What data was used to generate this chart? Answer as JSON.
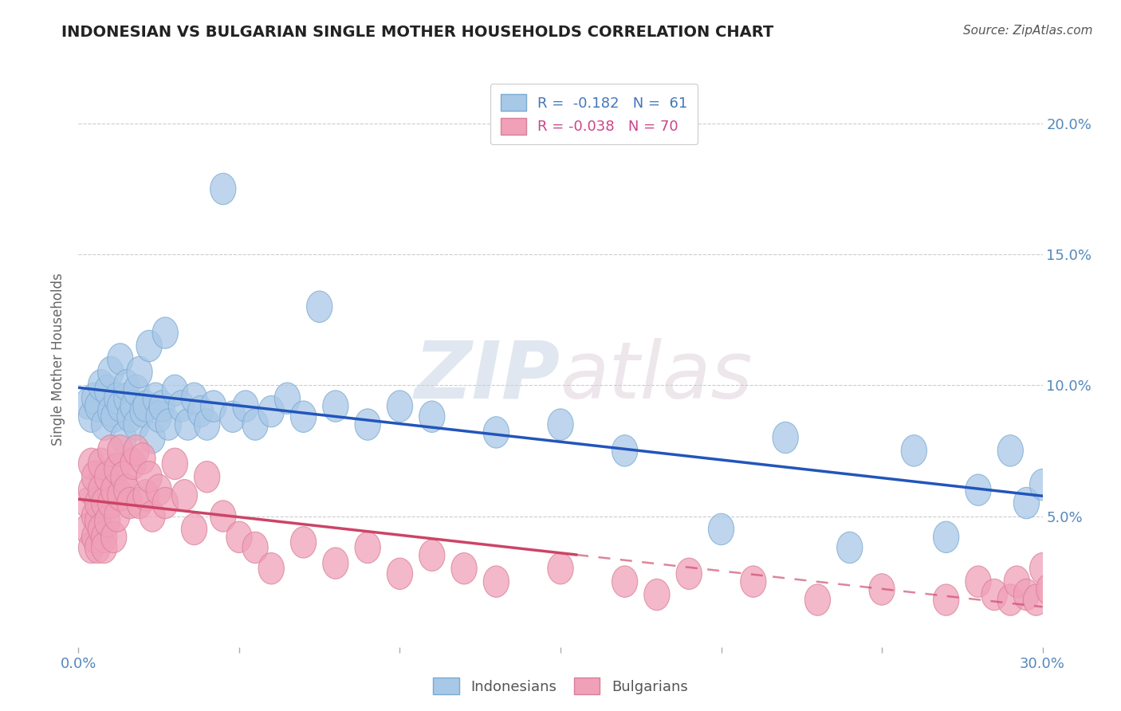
{
  "title": "INDONESIAN VS BULGARIAN SINGLE MOTHER HOUSEHOLDS CORRELATION CHART",
  "source": "Source: ZipAtlas.com",
  "ylabel": "Single Mother Households",
  "R1": -0.182,
  "N1": 61,
  "R2": -0.038,
  "N2": 70,
  "legend_label1": "Indonesians",
  "legend_label2": "Bulgarians",
  "xlim": [
    0.0,
    0.3
  ],
  "ylim": [
    0.0,
    0.22
  ],
  "xticks": [
    0.0,
    0.05,
    0.1,
    0.15,
    0.2,
    0.25,
    0.3
  ],
  "xticklabels": [
    "0.0%",
    "",
    "",
    "",
    "",
    "",
    "30.0%"
  ],
  "yticks": [
    0.05,
    0.1,
    0.15,
    0.2
  ],
  "yticklabels": [
    "5.0%",
    "10.0%",
    "15.0%",
    "20.0%"
  ],
  "color_blue_fill": "#A8C8E8",
  "color_blue_edge": "#7AAAD0",
  "color_pink_fill": "#F0A0B8",
  "color_pink_edge": "#D88098",
  "color_blue_line": "#2255BB",
  "color_pink_line": "#CC4466",
  "watermark_color": "#D0D8E8",
  "indonesian_x": [
    0.003,
    0.004,
    0.005,
    0.006,
    0.007,
    0.008,
    0.009,
    0.01,
    0.01,
    0.011,
    0.012,
    0.013,
    0.013,
    0.014,
    0.015,
    0.015,
    0.016,
    0.017,
    0.018,
    0.018,
    0.019,
    0.02,
    0.021,
    0.022,
    0.023,
    0.024,
    0.025,
    0.026,
    0.027,
    0.028,
    0.03,
    0.032,
    0.034,
    0.036,
    0.038,
    0.04,
    0.042,
    0.045,
    0.048,
    0.052,
    0.055,
    0.06,
    0.065,
    0.07,
    0.075,
    0.08,
    0.09,
    0.1,
    0.11,
    0.13,
    0.15,
    0.17,
    0.2,
    0.22,
    0.24,
    0.26,
    0.27,
    0.28,
    0.29,
    0.295,
    0.3
  ],
  "indonesian_y": [
    0.093,
    0.088,
    0.095,
    0.092,
    0.1,
    0.085,
    0.098,
    0.09,
    0.105,
    0.088,
    0.095,
    0.092,
    0.11,
    0.08,
    0.095,
    0.1,
    0.088,
    0.092,
    0.085,
    0.098,
    0.105,
    0.09,
    0.092,
    0.115,
    0.08,
    0.095,
    0.088,
    0.092,
    0.12,
    0.085,
    0.098,
    0.092,
    0.085,
    0.095,
    0.09,
    0.085,
    0.092,
    0.175,
    0.088,
    0.092,
    0.085,
    0.09,
    0.095,
    0.088,
    0.13,
    0.092,
    0.085,
    0.092,
    0.088,
    0.082,
    0.085,
    0.075,
    0.045,
    0.08,
    0.038,
    0.075,
    0.042,
    0.06,
    0.075,
    0.055,
    0.062
  ],
  "bulgarian_x": [
    0.003,
    0.003,
    0.004,
    0.004,
    0.004,
    0.005,
    0.005,
    0.005,
    0.006,
    0.006,
    0.006,
    0.007,
    0.007,
    0.007,
    0.008,
    0.008,
    0.008,
    0.009,
    0.009,
    0.01,
    0.01,
    0.011,
    0.011,
    0.012,
    0.012,
    0.013,
    0.013,
    0.014,
    0.015,
    0.016,
    0.017,
    0.018,
    0.019,
    0.02,
    0.021,
    0.022,
    0.023,
    0.025,
    0.027,
    0.03,
    0.033,
    0.036,
    0.04,
    0.045,
    0.05,
    0.055,
    0.06,
    0.07,
    0.08,
    0.09,
    0.1,
    0.11,
    0.12,
    0.13,
    0.15,
    0.17,
    0.18,
    0.19,
    0.21,
    0.23,
    0.25,
    0.27,
    0.28,
    0.285,
    0.29,
    0.292,
    0.295,
    0.298,
    0.3,
    0.302
  ],
  "bulgarian_y": [
    0.055,
    0.045,
    0.06,
    0.038,
    0.07,
    0.05,
    0.042,
    0.065,
    0.048,
    0.055,
    0.038,
    0.06,
    0.045,
    0.07,
    0.042,
    0.055,
    0.038,
    0.065,
    0.048,
    0.055,
    0.075,
    0.06,
    0.042,
    0.068,
    0.05,
    0.075,
    0.058,
    0.065,
    0.06,
    0.055,
    0.07,
    0.075,
    0.055,
    0.072,
    0.058,
    0.065,
    0.05,
    0.06,
    0.055,
    0.07,
    0.058,
    0.045,
    0.065,
    0.05,
    0.042,
    0.038,
    0.03,
    0.04,
    0.032,
    0.038,
    0.028,
    0.035,
    0.03,
    0.025,
    0.03,
    0.025,
    0.02,
    0.028,
    0.025,
    0.018,
    0.022,
    0.018,
    0.025,
    0.02,
    0.018,
    0.025,
    0.02,
    0.018,
    0.03,
    0.022
  ],
  "solid_line_end_bulgarian": 0.155
}
